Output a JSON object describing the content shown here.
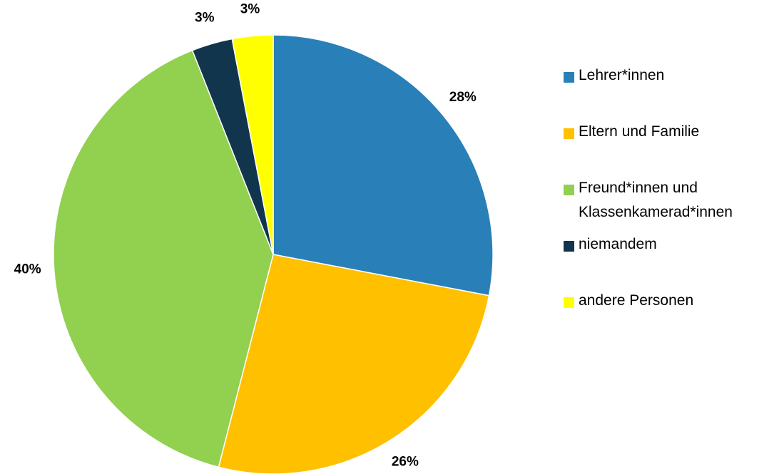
{
  "chart_data": {
    "type": "pie",
    "categories": [
      "Lehrer*innen",
      "Eltern und Familie",
      "Freund*innen und Klassenkamerad*innen",
      "niemandem",
      "andere Personen"
    ],
    "values": [
      28,
      26,
      40,
      3,
      3
    ],
    "value_labels": [
      "28%",
      "26%",
      "40%",
      "3%",
      "3%"
    ],
    "colors": [
      "#2980b9",
      "#ffc000",
      "#92d050",
      "#12354e",
      "#ffff00"
    ],
    "legend": "right"
  }
}
